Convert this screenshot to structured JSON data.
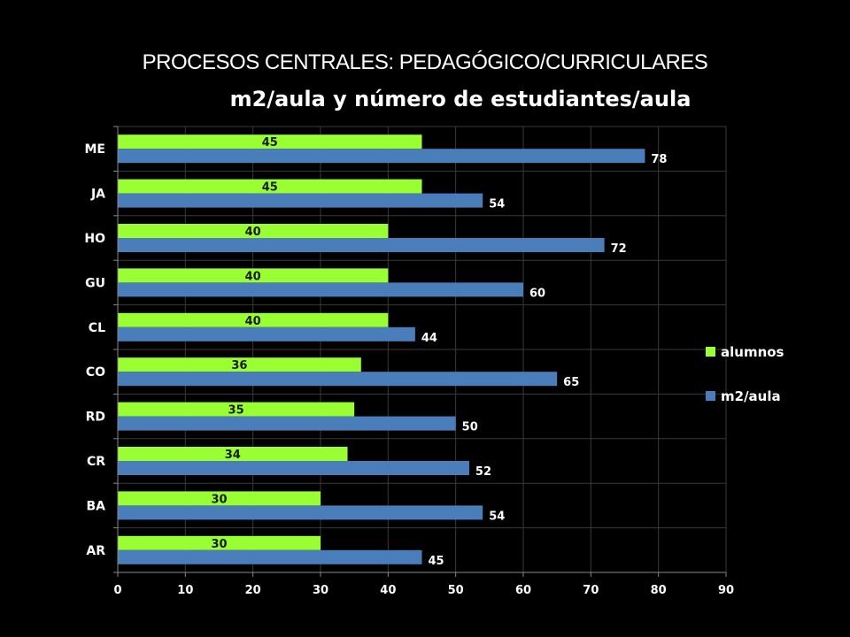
{
  "slide_heading": "PROCESOS CENTRALES: PEDAGÓGICO/CURRICULARES",
  "colors": {
    "background": "#000000",
    "alumnos": "#99ff33",
    "m2_aula": "#4a7ebb",
    "grid": "#3a3a3a",
    "text": "#ffffff"
  },
  "chart_data": {
    "type": "bar",
    "orientation": "horizontal",
    "title": "m2/aula y número de estudiantes/aula",
    "categories": [
      "ME",
      "JA",
      "HO",
      "GU",
      "CL",
      "CO",
      "RD",
      "CR",
      "BA",
      "AR"
    ],
    "series": [
      {
        "name": "alumnos",
        "values": [
          45,
          45,
          40,
          40,
          40,
          36,
          35,
          34,
          30,
          30
        ]
      },
      {
        "name": "m2/aula",
        "values": [
          78,
          54,
          72,
          60,
          44,
          65,
          50,
          52,
          54,
          45
        ]
      }
    ],
    "xlim": [
      0,
      90
    ],
    "xticks": [
      0,
      10,
      20,
      30,
      40,
      50,
      60,
      70,
      80,
      90
    ],
    "grid": true,
    "legend_position": "right"
  }
}
